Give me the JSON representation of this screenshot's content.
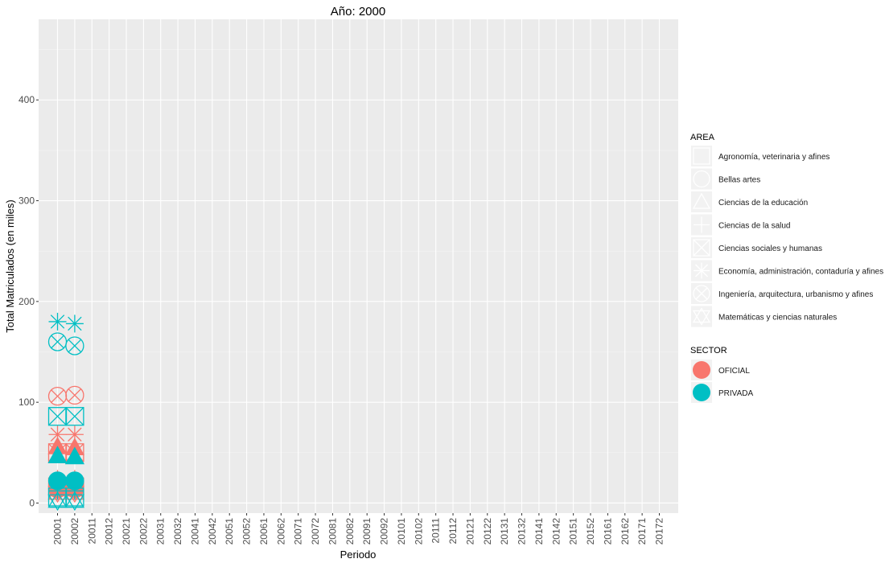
{
  "chart_data": {
    "type": "scatter",
    "title": "Año: 2000",
    "xlabel": "Periodo",
    "ylabel": "Total Matriculados (en miles)",
    "categories": [
      "20001",
      "20002",
      "20011",
      "20012",
      "20021",
      "20022",
      "20031",
      "20032",
      "20041",
      "20042",
      "20051",
      "20052",
      "20061",
      "20062",
      "20071",
      "20072",
      "20081",
      "20082",
      "20091",
      "20092",
      "20101",
      "20102",
      "20111",
      "20112",
      "20121",
      "20122",
      "20131",
      "20132",
      "20141",
      "20142",
      "20151",
      "20152",
      "20161",
      "20162",
      "20171",
      "20172"
    ],
    "yticks": [
      0,
      100,
      200,
      300,
      400
    ],
    "ylim": [
      -10,
      480
    ],
    "grid": true,
    "legend_position": "right",
    "legends": {
      "area": {
        "title": "AREA",
        "entries": [
          {
            "label": "Agronomía, veterinaria y afines",
            "shape": "square-open"
          },
          {
            "label": "Bellas artes",
            "shape": "circle-open"
          },
          {
            "label": "Ciencias de la educación",
            "shape": "triangle-up-open"
          },
          {
            "label": "Ciencias de la salud",
            "shape": "plus"
          },
          {
            "label": "Ciencias sociales y humanas",
            "shape": "square-cross"
          },
          {
            "label": "Economía, administración, contaduría y afines",
            "shape": "asterisk"
          },
          {
            "label": "Ingeniería, arquitectura, urbanismo y afines",
            "shape": "circle-cross"
          },
          {
            "label": "Matemáticas y ciencias naturales",
            "shape": "triangle-up-down"
          }
        ]
      },
      "sector": {
        "title": "SECTOR",
        "entries": [
          {
            "label": "OFICIAL",
            "color": "#F8766D"
          },
          {
            "label": "PRIVADA",
            "color": "#00BFC4"
          }
        ]
      }
    },
    "series": [
      {
        "name": "OFICIAL",
        "color": "#F8766D",
        "points": [
          {
            "x": "20001",
            "area": "Ingeniería, arquitectura, urbanismo y afines",
            "y": 106
          },
          {
            "x": "20002",
            "area": "Ingeniería, arquitectura, urbanismo y afines",
            "y": 107
          },
          {
            "x": "20001",
            "area": "Economía, administración, contaduría y afines",
            "y": 68
          },
          {
            "x": "20002",
            "area": "Economía, administración, contaduría y afines",
            "y": 68
          },
          {
            "x": "20001",
            "area": "Ciencias de la educación",
            "y": 56
          },
          {
            "x": "20002",
            "area": "Ciencias de la educación",
            "y": 55
          },
          {
            "x": "20001",
            "area": "Ciencias sociales y humanas",
            "y": 50
          },
          {
            "x": "20002",
            "area": "Ciencias sociales y humanas",
            "y": 50
          },
          {
            "x": "20001",
            "area": "Bellas artes",
            "y": 14
          },
          {
            "x": "20002",
            "area": "Bellas artes",
            "y": 14
          },
          {
            "x": "20001",
            "area": "Ciencias de la salud",
            "y": 24
          },
          {
            "x": "20002",
            "area": "Ciencias de la salud",
            "y": 24
          },
          {
            "x": "20001",
            "area": "Agronomía, veterinaria y afines",
            "y": 16
          },
          {
            "x": "20002",
            "area": "Agronomía, veterinaria y afines",
            "y": 16
          },
          {
            "x": "20001",
            "area": "Matemáticas y ciencias naturales",
            "y": 10
          },
          {
            "x": "20002",
            "area": "Matemáticas y ciencias naturales",
            "y": 10
          }
        ]
      },
      {
        "name": "PRIVADA",
        "color": "#00BFC4",
        "points": [
          {
            "x": "20001",
            "area": "Economía, administración, contaduría y afines",
            "y": 180
          },
          {
            "x": "20002",
            "area": "Economía, administración, contaduría y afines",
            "y": 178
          },
          {
            "x": "20001",
            "area": "Ingeniería, arquitectura, urbanismo y afines",
            "y": 160
          },
          {
            "x": "20002",
            "area": "Ingeniería, arquitectura, urbanismo y afines",
            "y": 156
          },
          {
            "x": "20001",
            "area": "Ciencias sociales y humanas",
            "y": 86
          },
          {
            "x": "20002",
            "area": "Ciencias sociales y humanas",
            "y": 86
          },
          {
            "x": "20001",
            "area": "Ciencias de la educación",
            "y": 47
          },
          {
            "x": "20002",
            "area": "Ciencias de la educación",
            "y": 46
          },
          {
            "x": "20001",
            "area": "Bellas artes",
            "y": 22
          },
          {
            "x": "20002",
            "area": "Bellas artes",
            "y": 22
          },
          {
            "x": "20001",
            "area": "Ciencias de la salud",
            "y": 12
          },
          {
            "x": "20002",
            "area": "Ciencias de la salud",
            "y": 12
          },
          {
            "x": "20001",
            "area": "Agronomía, veterinaria y afines",
            "y": 6
          },
          {
            "x": "20002",
            "area": "Agronomía, veterinaria y afines",
            "y": 6
          },
          {
            "x": "20001",
            "area": "Matemáticas y ciencias naturales",
            "y": 2
          },
          {
            "x": "20002",
            "area": "Matemáticas y ciencias naturales",
            "y": 2
          }
        ]
      }
    ]
  }
}
